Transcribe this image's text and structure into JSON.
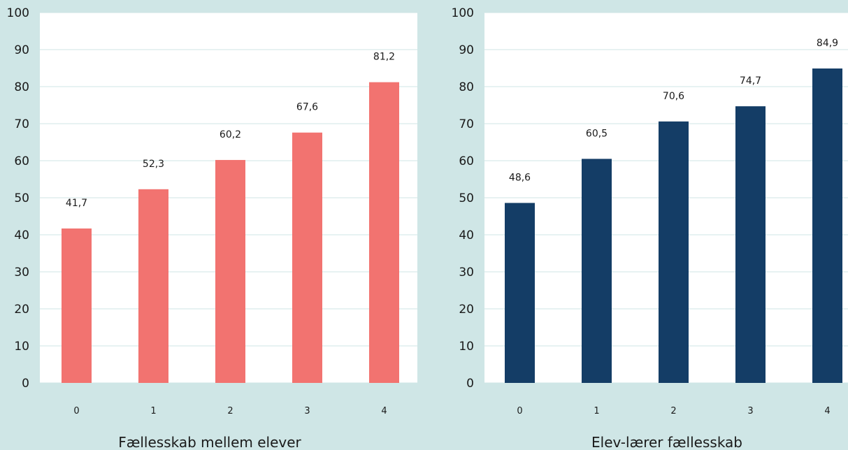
{
  "chart_data": [
    {
      "type": "bar",
      "xlabel": "Fællesskab mellem elever",
      "categories": [
        "0",
        "1",
        "2",
        "3",
        "4"
      ],
      "values": [
        41.7,
        52.3,
        60.2,
        67.6,
        81.2
      ],
      "data_labels": [
        "41,7",
        "52,3",
        "60,2",
        "67,6",
        "81,2"
      ],
      "ylim": [
        0,
        100
      ],
      "yticks": [
        "0",
        "10",
        "20",
        "30",
        "40",
        "50",
        "60",
        "70",
        "80",
        "90",
        "100"
      ],
      "grid": true,
      "color": "#f27370"
    },
    {
      "type": "bar",
      "xlabel": "Elev-lærer fællesskab",
      "categories": [
        "0",
        "1",
        "2",
        "3",
        "4"
      ],
      "values": [
        48.6,
        60.5,
        70.6,
        74.7,
        84.9
      ],
      "data_labels": [
        "48,6",
        "60,5",
        "70,6",
        "74,7",
        "84,9"
      ],
      "ylim": [
        0,
        100
      ],
      "yticks": [
        "0",
        "10",
        "20",
        "30",
        "40",
        "50",
        "60",
        "70",
        "80",
        "90",
        "100"
      ],
      "grid": true,
      "color": "#143d66"
    }
  ]
}
